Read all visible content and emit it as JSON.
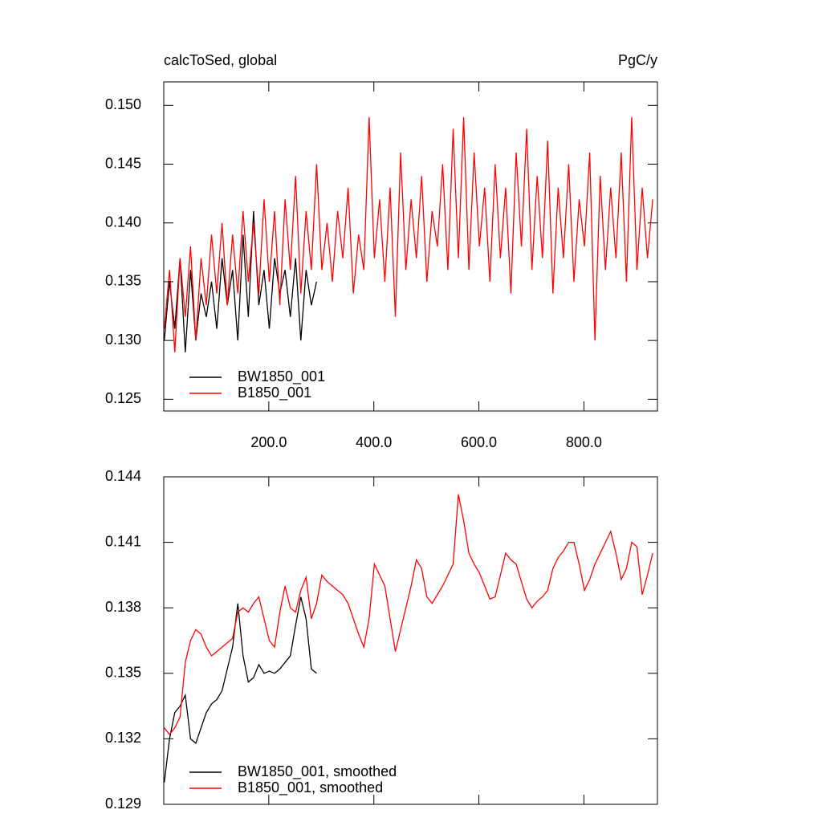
{
  "chart_data": [
    {
      "type": "line",
      "title": "calcToSed, global",
      "units": "PgC/y",
      "xlim": [
        0,
        940
      ],
      "ylim": [
        0.124,
        0.152
      ],
      "xticks": [
        {
          "value": 200,
          "label": "200.0"
        },
        {
          "value": 400,
          "label": "400.0"
        },
        {
          "value": 600,
          "label": "600.0"
        },
        {
          "value": 800,
          "label": "800.0"
        }
      ],
      "yticks": [
        0.125,
        {
          "value": 0.13,
          "label": "0.130"
        },
        0.135,
        {
          "value": 0.14,
          "label": "0.140"
        },
        0.145,
        {
          "value": 0.15,
          "label": "0.150"
        }
      ],
      "series": [
        {
          "name": "BW1850_001",
          "color": "#000000",
          "x": [
            1,
            11,
            21,
            31,
            41,
            51,
            61,
            71,
            81,
            91,
            101,
            111,
            121,
            131,
            141,
            151,
            161,
            171,
            181,
            191,
            201,
            211,
            221,
            231,
            241,
            251,
            261,
            271,
            281,
            291
          ],
          "values": [
            0.13,
            0.135,
            0.131,
            0.137,
            0.129,
            0.136,
            0.13,
            0.134,
            0.132,
            0.135,
            0.131,
            0.137,
            0.133,
            0.136,
            0.13,
            0.139,
            0.132,
            0.141,
            0.133,
            0.136,
            0.131,
            0.137,
            0.134,
            0.136,
            0.132,
            0.137,
            0.13,
            0.136,
            0.133,
            0.135
          ]
        },
        {
          "name": "B1850_001",
          "color": "#ff0000",
          "x": [
            1,
            11,
            21,
            31,
            41,
            51,
            61,
            71,
            81,
            91,
            101,
            111,
            121,
            131,
            141,
            151,
            161,
            171,
            181,
            191,
            201,
            211,
            221,
            231,
            241,
            251,
            261,
            271,
            281,
            291,
            301,
            311,
            321,
            331,
            341,
            351,
            361,
            371,
            381,
            391,
            401,
            411,
            421,
            431,
            441,
            451,
            461,
            471,
            481,
            491,
            501,
            511,
            521,
            531,
            541,
            551,
            561,
            571,
            581,
            591,
            601,
            611,
            621,
            631,
            641,
            651,
            661,
            671,
            681,
            691,
            701,
            711,
            721,
            731,
            741,
            751,
            761,
            771,
            781,
            791,
            801,
            811,
            821,
            831,
            841,
            851,
            861,
            871,
            881,
            891,
            901,
            911,
            921,
            931
          ],
          "values": [
            0.131,
            0.136,
            0.129,
            0.137,
            0.132,
            0.138,
            0.13,
            0.137,
            0.133,
            0.139,
            0.134,
            0.14,
            0.133,
            0.139,
            0.134,
            0.141,
            0.135,
            0.14,
            0.134,
            0.142,
            0.135,
            0.141,
            0.133,
            0.142,
            0.136,
            0.144,
            0.134,
            0.141,
            0.136,
            0.145,
            0.136,
            0.14,
            0.135,
            0.141,
            0.137,
            0.143,
            0.134,
            0.139,
            0.136,
            0.149,
            0.137,
            0.142,
            0.135,
            0.143,
            0.132,
            0.146,
            0.136,
            0.142,
            0.137,
            0.144,
            0.135,
            0.141,
            0.138,
            0.145,
            0.136,
            0.148,
            0.137,
            0.149,
            0.136,
            0.146,
            0.138,
            0.143,
            0.135,
            0.145,
            0.137,
            0.143,
            0.134,
            0.146,
            0.138,
            0.148,
            0.136,
            0.144,
            0.137,
            0.147,
            0.134,
            0.143,
            0.137,
            0.145,
            0.135,
            0.142,
            0.138,
            0.146,
            0.13,
            0.144,
            0.136,
            0.143,
            0.137,
            0.146,
            0.135,
            0.149,
            0.136,
            0.143,
            0.137,
            0.142
          ]
        }
      ]
    },
    {
      "type": "line",
      "xlim": [
        0,
        940
      ],
      "ylim": [
        0.129,
        0.144
      ],
      "xticks": [
        200,
        400,
        600,
        800
      ],
      "yticks": [
        0.129,
        0.132,
        0.135,
        0.138,
        0.141,
        0.144
      ],
      "series": [
        {
          "name": "BW1850_001, smoothed",
          "color": "#000000",
          "x": [
            1,
            11,
            21,
            31,
            41,
            51,
            61,
            71,
            81,
            91,
            101,
            111,
            121,
            131,
            141,
            151,
            161,
            171,
            181,
            191,
            201,
            211,
            221,
            231,
            241,
            251,
            261,
            271,
            281,
            291
          ],
          "values": [
            0.13,
            0.132,
            0.1332,
            0.1335,
            0.134,
            0.132,
            0.1318,
            0.1325,
            0.1332,
            0.1336,
            0.1338,
            0.1342,
            0.1352,
            0.1362,
            0.1382,
            0.1358,
            0.1346,
            0.1348,
            0.1354,
            0.135,
            0.1351,
            0.135,
            0.1352,
            0.1355,
            0.1358,
            0.1372,
            0.1385,
            0.1375,
            0.1352,
            0.135
          ]
        },
        {
          "name": "B1850_001, smoothed",
          "color": "#ff0000",
          "x": [
            1,
            11,
            21,
            31,
            41,
            51,
            61,
            71,
            81,
            91,
            101,
            111,
            121,
            131,
            141,
            151,
            161,
            171,
            181,
            191,
            201,
            211,
            221,
            231,
            241,
            251,
            261,
            271,
            281,
            291,
            301,
            311,
            321,
            331,
            341,
            351,
            361,
            371,
            381,
            391,
            401,
            411,
            421,
            431,
            441,
            451,
            461,
            471,
            481,
            491,
            501,
            511,
            521,
            531,
            541,
            551,
            561,
            571,
            581,
            591,
            601,
            611,
            621,
            631,
            641,
            651,
            661,
            671,
            681,
            691,
            701,
            711,
            721,
            731,
            741,
            751,
            761,
            771,
            781,
            791,
            801,
            811,
            821,
            831,
            841,
            851,
            861,
            871,
            881,
            891,
            901,
            911,
            921,
            931
          ],
          "values": [
            0.1325,
            0.1322,
            0.1325,
            0.133,
            0.1355,
            0.1365,
            0.137,
            0.1368,
            0.1362,
            0.1358,
            0.136,
            0.1362,
            0.1364,
            0.1366,
            0.1378,
            0.138,
            0.1378,
            0.1382,
            0.1385,
            0.1375,
            0.1365,
            0.1362,
            0.1378,
            0.139,
            0.138,
            0.1378,
            0.1388,
            0.1394,
            0.1375,
            0.1382,
            0.1395,
            0.1392,
            0.139,
            0.1388,
            0.1386,
            0.1382,
            0.1375,
            0.1368,
            0.1362,
            0.1375,
            0.14,
            0.1395,
            0.139,
            0.1375,
            0.136,
            0.137,
            0.138,
            0.139,
            0.1402,
            0.1398,
            0.1385,
            0.1382,
            0.1386,
            0.139,
            0.1395,
            0.14,
            0.1432,
            0.142,
            0.1405,
            0.14,
            0.1396,
            0.139,
            0.1384,
            0.1385,
            0.1395,
            0.1405,
            0.1402,
            0.14,
            0.1392,
            0.1384,
            0.138,
            0.1383,
            0.1385,
            0.1388,
            0.1398,
            0.1403,
            0.1406,
            0.141,
            0.141,
            0.14,
            0.1388,
            0.1393,
            0.14,
            0.1405,
            0.141,
            0.1415,
            0.1405,
            0.1393,
            0.1398,
            0.141,
            0.1408,
            0.1386,
            0.1395,
            0.1405
          ]
        }
      ]
    }
  ]
}
